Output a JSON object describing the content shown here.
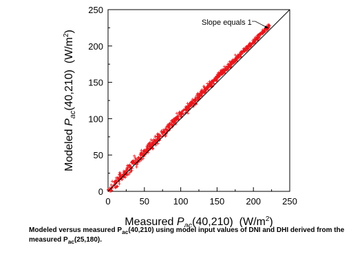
{
  "chart_data": {
    "type": "scatter",
    "title": "",
    "xlabel": {
      "prefix": "Measured ",
      "symbol": "P",
      "sub": "ac",
      "args": "(40,210)",
      "units_pre": "  (W/m",
      "units_sup": "2",
      "units_post": ")"
    },
    "ylabel": {
      "prefix": "Modeled ",
      "symbol": "P",
      "sub": "ac",
      "args": "(40,210)",
      "units_pre": "  (W/m",
      "units_sup": "2",
      "units_post": ")"
    },
    "xlim": [
      0,
      250
    ],
    "ylim": [
      0,
      250
    ],
    "x_ticks": [
      "0",
      "50",
      "100",
      "150",
      "200",
      "250"
    ],
    "y_ticks": [
      "0",
      "50",
      "100",
      "150",
      "200",
      "250"
    ],
    "grid": false,
    "marker": "+",
    "marker_color": "#e8161b",
    "reference_line": {
      "label": "Slope equals 1",
      "slope": 1,
      "intercept": 0,
      "from": [
        0,
        0
      ],
      "to": [
        250,
        250
      ]
    },
    "annotation": {
      "text": "Slope equals 1",
      "arrow_to": [
        221,
        226
      ]
    },
    "trend": {
      "slope_low": 1.08,
      "slope_high": 1.025,
      "x_max": 222
    },
    "series": [
      {
        "x": [
          2,
          5,
          8,
          12,
          15,
          18,
          22,
          25,
          30,
          35,
          40,
          45,
          50,
          55,
          60,
          65,
          70,
          75,
          80,
          85,
          90,
          95,
          100,
          105,
          110,
          115,
          120,
          125,
          130,
          135,
          140,
          145,
          150,
          155,
          160,
          165,
          170,
          175,
          180,
          185,
          190,
          195,
          200,
          205,
          210,
          215,
          220
        ],
        "y": [
          2,
          5,
          9,
          13,
          16,
          20,
          24,
          27,
          33,
          38,
          43,
          49,
          54,
          59,
          65,
          70,
          75,
          81,
          86,
          91,
          96,
          102,
          107,
          112,
          117,
          122,
          127,
          132,
          137,
          142,
          147,
          152,
          157,
          162,
          167,
          172,
          177,
          182,
          187,
          192,
          197,
          202,
          206,
          211,
          216,
          220,
          224
        ]
      }
    ]
  },
  "caption": {
    "line1_a": "Modeled versus measured P",
    "line1_sub": "ac",
    "line1_b": "(40,210) using model input values of DNI and DHI derived from the",
    "line2_a": "measured P",
    "line2_sub": "ac",
    "line2_b": "(25,180)."
  }
}
